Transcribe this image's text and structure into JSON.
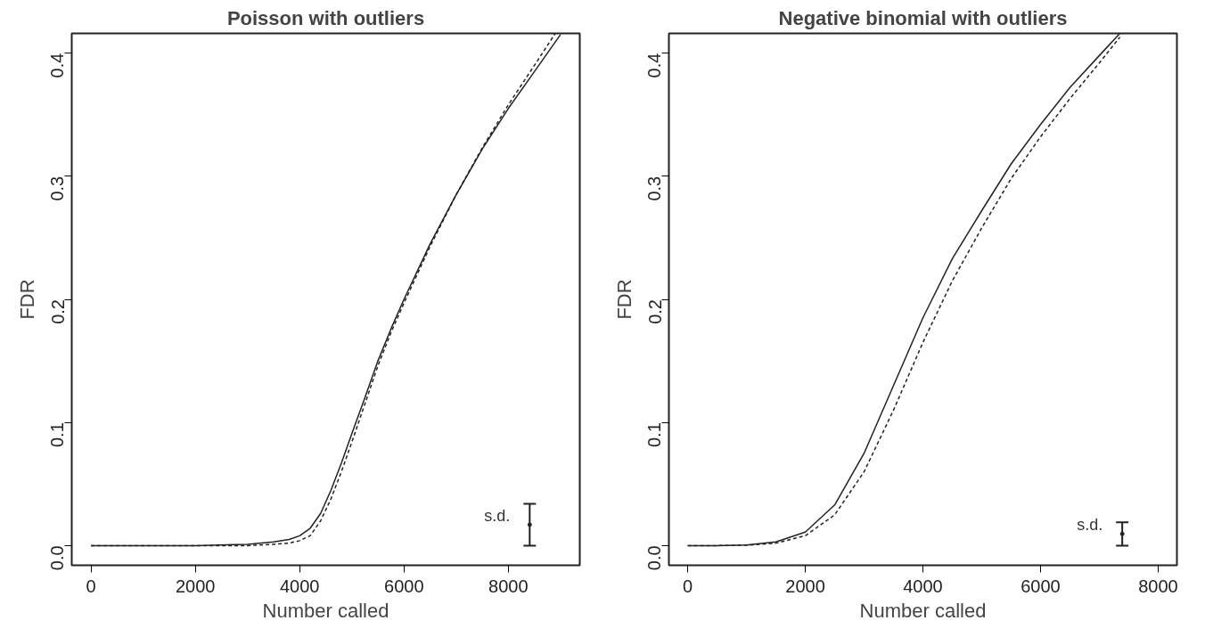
{
  "chart_data": [
    {
      "type": "line",
      "title": "Poisson with outliers",
      "xlabel": "Number called",
      "ylabel": "FDR",
      "xlim": [
        -370,
        9370
      ],
      "ylim": [
        -0.016,
        0.416
      ],
      "xticks": [
        0,
        2000,
        4000,
        6000,
        8000
      ],
      "yticks": [
        {
          "value": 0,
          "label": "0.0"
        },
        0.1,
        0.2,
        0.3,
        0.4
      ],
      "grid": false,
      "series": [
        {
          "color": "#222222",
          "line_style": "solid",
          "x": [
            0,
            1000,
            2000,
            3000,
            3500,
            3800,
            4000,
            4200,
            4400,
            4600,
            4800,
            5000,
            5250,
            5500,
            5750,
            6000,
            6500,
            7000,
            7500,
            8000,
            8500,
            9000
          ],
          "values": [
            0,
            0,
            0,
            0.001,
            0.003,
            0.005,
            0.008,
            0.014,
            0.026,
            0.045,
            0.067,
            0.091,
            0.12,
            0.15,
            0.176,
            0.2,
            0.245,
            0.285,
            0.322,
            0.355,
            0.385,
            0.415
          ]
        },
        {
          "color": "#222222",
          "line_style": "dashed",
          "x": [
            0,
            1000,
            2000,
            3000,
            3500,
            3800,
            4000,
            4200,
            4400,
            4600,
            4800,
            5000,
            5250,
            5500,
            5750,
            6000,
            6500,
            7000,
            7500,
            8000,
            8500,
            8900
          ],
          "values": [
            0,
            0,
            0,
            0,
            0.001,
            0.002,
            0.004,
            0.008,
            0.02,
            0.038,
            0.06,
            0.084,
            0.115,
            0.146,
            0.173,
            0.197,
            0.243,
            0.285,
            0.323,
            0.358,
            0.39,
            0.416
          ]
        },
        {
          "type": "scatter",
          "name": "s.d.",
          "marker": "circle",
          "color": "#222222",
          "x": [
            8410
          ],
          "values": [
            0.017
          ],
          "errors": [
            [
              0,
              0.034
            ]
          ]
        }
      ]
    },
    {
      "type": "line",
      "title": "Negative binomial with outliers",
      "xlabel": "Number called",
      "ylabel": "FDR",
      "xlim": [
        -320,
        8320
      ],
      "ylim": [
        -0.016,
        0.416
      ],
      "xticks": [
        0,
        2000,
        4000,
        6000,
        8000
      ],
      "yticks": [
        {
          "value": 0,
          "label": "0.0"
        },
        0.1,
        0.2,
        0.3,
        0.4
      ],
      "grid": false,
      "series": [
        {
          "color": "#222222",
          "line_style": "solid",
          "x": [
            0,
            500,
            1000,
            1500,
            2000,
            2500,
            3000,
            3500,
            4000,
            4500,
            5000,
            5500,
            6000,
            6500,
            7000,
            7350
          ],
          "values": [
            0,
            0,
            0.0005,
            0.003,
            0.011,
            0.033,
            0.075,
            0.13,
            0.185,
            0.233,
            0.272,
            0.31,
            0.342,
            0.372,
            0.398,
            0.416
          ]
        },
        {
          "color": "#222222",
          "line_style": "dashed",
          "x": [
            0,
            500,
            1000,
            1500,
            2000,
            2500,
            3000,
            3500,
            4000,
            4500,
            5000,
            5500,
            6000,
            6500,
            7000,
            7350
          ],
          "values": [
            0,
            0,
            0.0003,
            0.002,
            0.008,
            0.025,
            0.06,
            0.11,
            0.165,
            0.215,
            0.258,
            0.298,
            0.332,
            0.363,
            0.392,
            0.413
          ]
        },
        {
          "type": "scatter",
          "name": "s.d.",
          "marker": "circle",
          "color": "#222222",
          "x": [
            7390
          ],
          "values": [
            0.0095
          ],
          "errors": [
            [
              0,
              0.019
            ]
          ]
        }
      ]
    }
  ]
}
